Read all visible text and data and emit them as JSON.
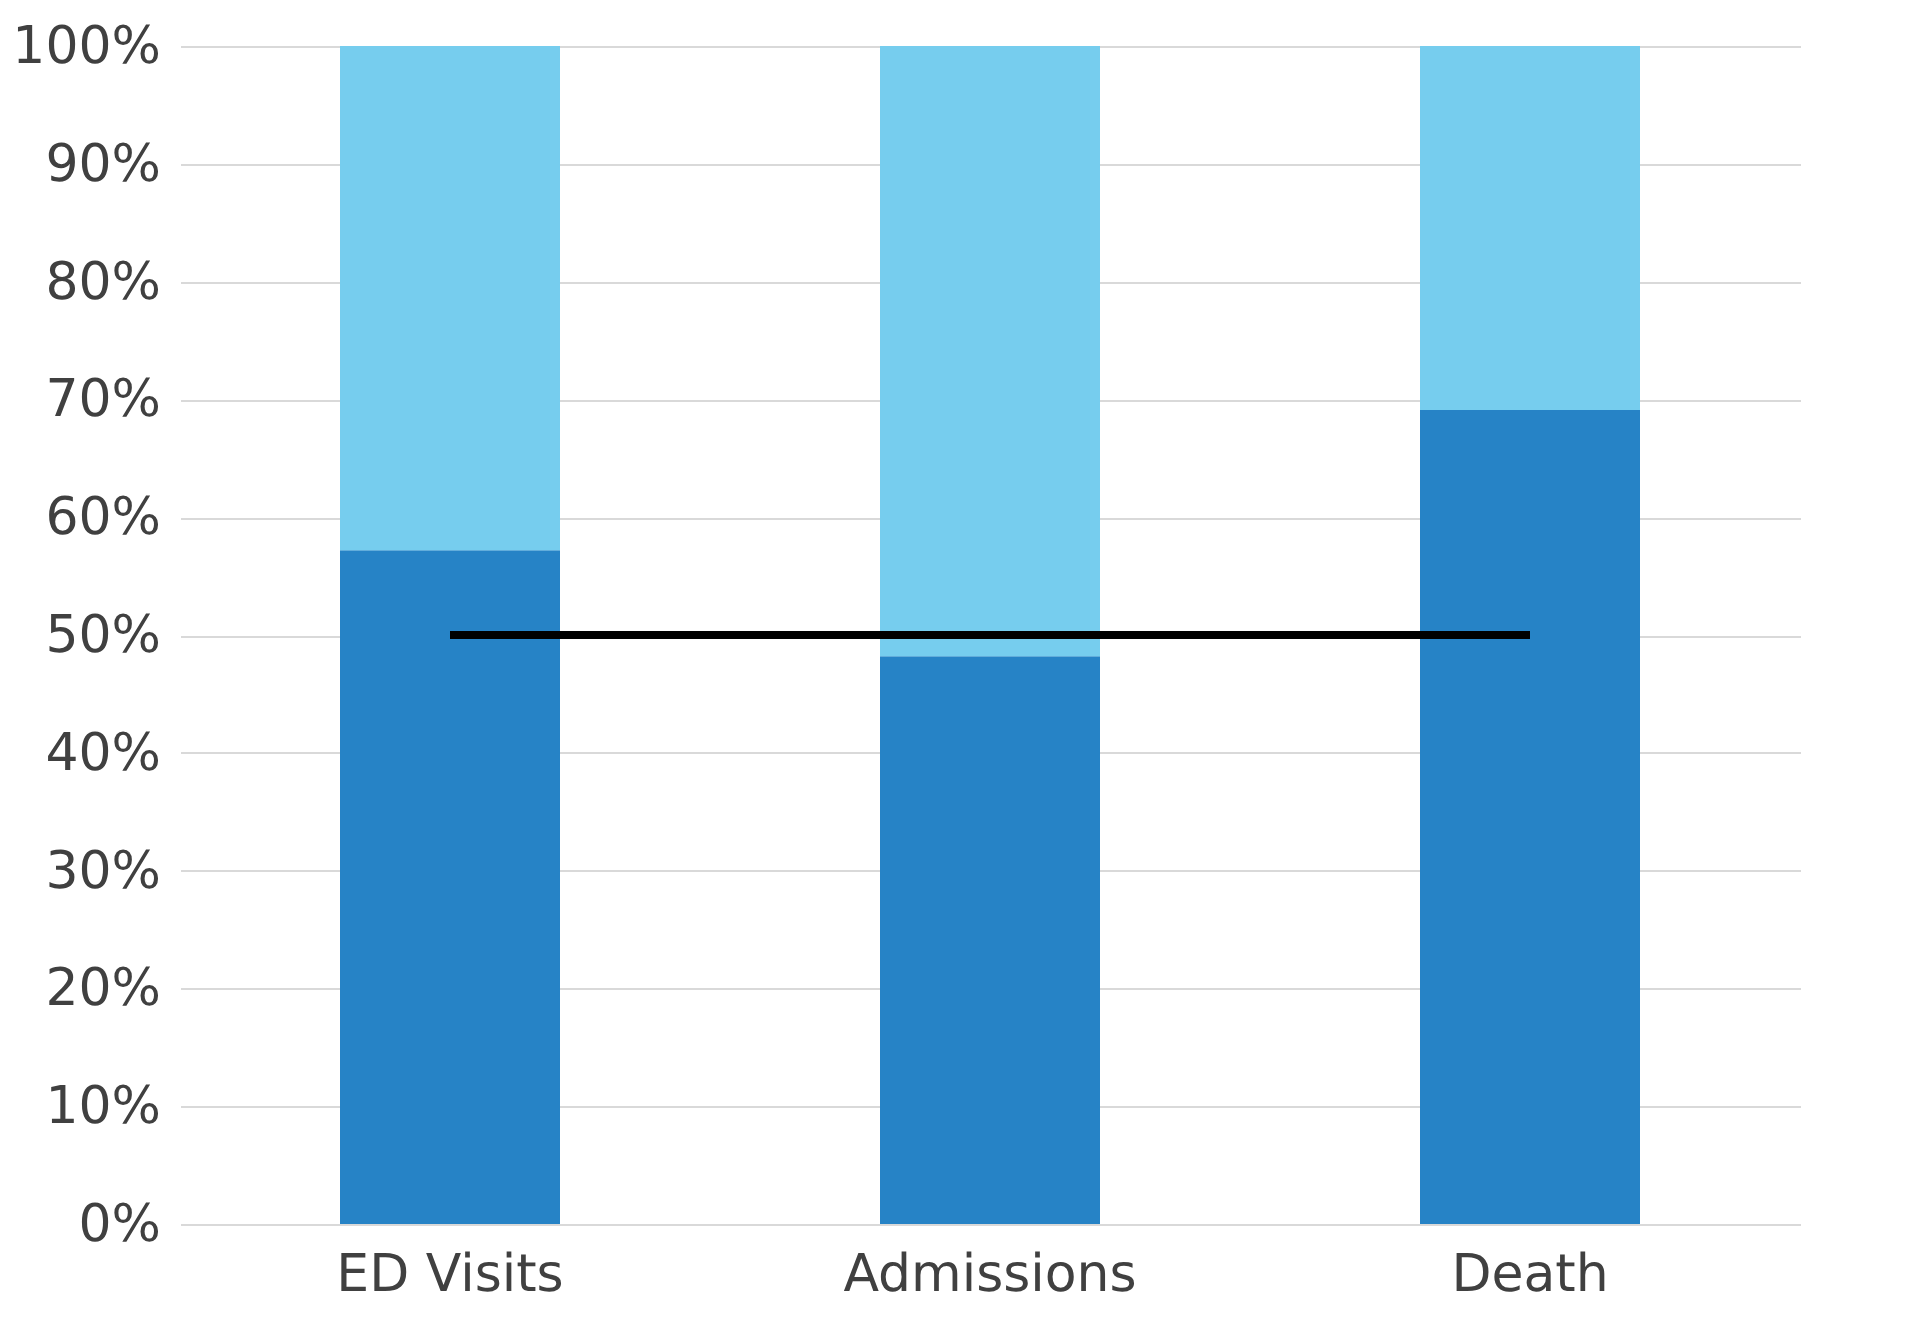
{
  "chart_data": {
    "type": "bar",
    "stacked": true,
    "categories": [
      "ED Visits",
      "Admissions",
      "Death"
    ],
    "series": [
      {
        "color": "#2683c6",
        "values": [
          57.2,
          48.2,
          69.1
        ]
      },
      {
        "color": "#76cdee",
        "values": [
          42.8,
          51.8,
          30.9
        ]
      }
    ],
    "ylim": [
      0,
      100
    ],
    "yticks": [
      {
        "value": 0,
        "label": "0%"
      },
      {
        "value": 10,
        "label": "10%"
      },
      {
        "value": 20,
        "label": "20%"
      },
      {
        "value": 30,
        "label": "30%"
      },
      {
        "value": 40,
        "label": "40%"
      },
      {
        "value": 50,
        "label": "50%"
      },
      {
        "value": 60,
        "label": "60%"
      },
      {
        "value": 70,
        "label": "70%"
      },
      {
        "value": 80,
        "label": "80%"
      },
      {
        "value": 90,
        "label": "90%"
      },
      {
        "value": 100,
        "label": "100%"
      }
    ],
    "grid": "y",
    "legend": false,
    "ref_lines": [
      {
        "axis": "y",
        "value": 50,
        "color": "#000000",
        "line_style": "solid"
      }
    ]
  }
}
